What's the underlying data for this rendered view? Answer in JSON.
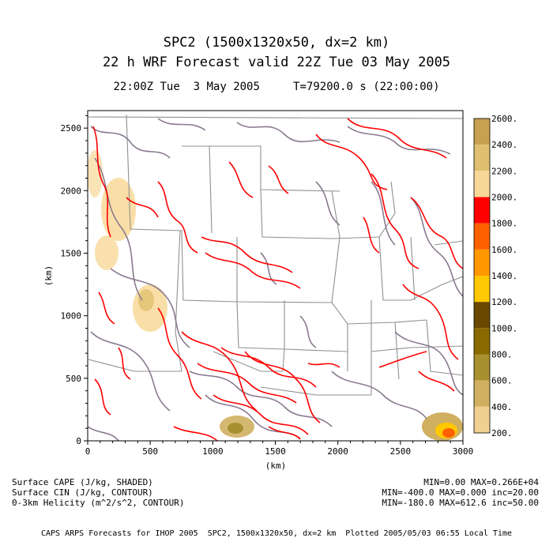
{
  "title": {
    "line1": "SPC2 (1500x1320x50, dx=2 km)",
    "line2": "22 h WRF Forecast valid 22Z Tue 03 May 2005",
    "line3": "22:00Z Tue  3 May 2005     T=79200.0 s (22:00:00)"
  },
  "axes": {
    "xlabel": "(km)",
    "ylabel": "(km)",
    "x_ticks": [
      0,
      500,
      1000,
      1500,
      2000,
      2500,
      3000
    ],
    "y_ticks": [
      0,
      500,
      1000,
      1500,
      2000,
      2500
    ],
    "xlim": [
      0,
      3000
    ],
    "ylim": [
      0,
      2640
    ]
  },
  "colorbar": {
    "labels": [
      "2600.",
      "2400.",
      "2200.",
      "2000.",
      "1800.",
      "1600.",
      "1400.",
      "1200.",
      "1000.",
      "800.",
      "600.",
      "400.",
      "200."
    ],
    "colors": [
      "#c8a050",
      "#e0c070",
      "#f8d898",
      "#ff0000",
      "#ff6000",
      "#ff9800",
      "#ffc800",
      "#6a4800",
      "#8a6a00",
      "#a89030",
      "#d0b060",
      "#f0d090"
    ]
  },
  "legend": {
    "cape_label": "Surface CAPE (J/kg, SHADED)",
    "cin_label": "Surface CIN (J/kg, CONTOUR)",
    "helicity_label": "0-3km Helicity (m^2/s^2, CONTOUR)",
    "cape_stats": "MIN=0.00 MAX=0.266E+04",
    "cin_stats": "MIN=-400.0 MAX=0.000 inc=20.00",
    "helicity_stats": "MIN=-180.0 MAX=612.6 inc=50.00"
  },
  "footer": "CAPS ARPS Forecasts for IHOP 2005  SPC2, 1500x1320x50, dx=2 km  Plotted 2005/05/03 06:55 Local Time",
  "colors": {
    "cin_contour": "#ff0000",
    "helicity_contour": "#8a7a90",
    "boundaries": "#909090",
    "cape_light": "#f8d898"
  }
}
